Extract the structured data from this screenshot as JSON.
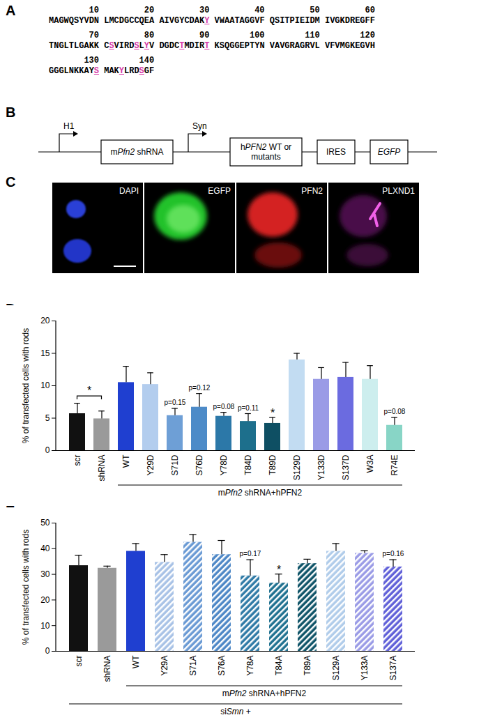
{
  "panels": [
    {
      "label": "A",
      "sequence": {
        "numbers": [
          10,
          20,
          30,
          40,
          50,
          60,
          70,
          80,
          90,
          100,
          110,
          120,
          130,
          140
        ],
        "blocks": [
          "MAGWQSYVDN",
          "LMCDGCCQEA",
          "AIVGYCDAKY",
          "VWAATAGGVF",
          "QSITPIEIDM",
          "IVGKDREGFF",
          "TNGLTLGAKK",
          "CSVIRDSLYV",
          "DGDCTMDIRT",
          "KSQGGEPTYN",
          "VAVGRAGRVL",
          "VFVMGKEGVH",
          "GGGLNKKAYS",
          "MAKYLRDSGF"
        ],
        "highlighted": [
          30,
          72,
          77,
          79,
          85,
          90,
          130,
          134,
          138
        ],
        "color": "#d63aa8"
      }
    },
    {
      "label": "B",
      "elements": [
        {
          "type": "promoter",
          "text": "H1"
        },
        {
          "type": "box",
          "lines": [
            [
              {
                "text": "m"
              },
              {
                "text": "Pfn2",
                "italic": true
              },
              {
                "text": " shRNA"
              }
            ]
          ]
        },
        {
          "type": "promoter",
          "text": "Syn"
        },
        {
          "type": "box",
          "lines": [
            [
              {
                "text": "h"
              },
              {
                "text": "PFN2",
                "italic": true
              },
              {
                "text": " WT or"
              }
            ],
            [
              {
                "text": "mutants"
              }
            ]
          ]
        },
        {
          "type": "box",
          "lines": [
            [
              {
                "text": "IRES"
              }
            ]
          ]
        },
        {
          "type": "box",
          "lines": [
            [
              {
                "text": "EGFP",
                "italic": true
              }
            ]
          ]
        }
      ]
    },
    {
      "label": "C",
      "images": [
        "DAPI",
        "EGFP",
        "PFN2",
        "PLXND1"
      ]
    }
  ],
  "chart_data": [
    {
      "label": "D",
      "type": "bar",
      "y_label": "% of transfected cells with rods",
      "categories": [
        "scr",
        "shRNA",
        "WT",
        "Y29D",
        "S71D",
        "S76D",
        "Y78D",
        "T84D",
        "T89D",
        "S129D",
        "Y133D",
        "S137D",
        "W3A",
        "R74E"
      ],
      "values": [
        5.7,
        4.9,
        10.5,
        10.2,
        5.4,
        6.7,
        5.3,
        4.5,
        4.2,
        14.0,
        11.0,
        11.3,
        11.0,
        3.9
      ],
      "errors": [
        1.6,
        1.2,
        2.5,
        1.8,
        1.1,
        2.1,
        0.6,
        1.2,
        0.9,
        1.0,
        1.8,
        2.3,
        2.1,
        1.2
      ],
      "colors": [
        "#111111",
        "#9a9a9a",
        "#1f3fd0",
        "#b3cdee",
        "#6e9fd6",
        "#4d8bc8",
        "#2c78a8",
        "#1d6f8c",
        "#0e4f63",
        "#c2dcf2",
        "#9a9be6",
        "#6b6be0",
        "#cdeeee",
        "#88d5c6"
      ],
      "ylim": [
        0,
        20
      ],
      "yticks": [
        0,
        5,
        10,
        15,
        20
      ],
      "annotations": [
        {
          "category": "S71D",
          "text": "p=0.15"
        },
        {
          "category": "S76D",
          "text": "p=0.12"
        },
        {
          "category": "Y78D",
          "text": "p=0.08"
        },
        {
          "category": "T84D",
          "text": "p=0.11"
        },
        {
          "category": "T89D",
          "text": "*"
        },
        {
          "category": "R74E",
          "text": "p=0.08"
        }
      ],
      "brackets": [
        {
          "from": "scr",
          "to": "shRNA",
          "text": "*"
        }
      ],
      "groups": [
        {
          "from": "WT",
          "to": "R74E",
          "label": [
            {
              "text": "m"
            },
            {
              "text": "Pfn2",
              "italic": true
            },
            {
              "text": " shRNA+hPFN2"
            }
          ]
        }
      ]
    },
    {
      "label": "E",
      "type": "bar",
      "y_label": "% of transfected cells with rods",
      "categories": [
        "scr",
        "shRNA",
        "WT",
        "Y29A",
        "S71A",
        "S76A",
        "Y78A",
        "T84A",
        "T89A",
        "S129A",
        "Y133A",
        "S137A"
      ],
      "values": [
        33.4,
        32.4,
        39.0,
        34.7,
        42.5,
        37.7,
        29.4,
        26.6,
        34.2,
        39.0,
        38.2,
        32.9
      ],
      "errors": [
        4.0,
        0.8,
        3.0,
        3.0,
        3.0,
        5.5,
        6.3,
        3.5,
        1.7,
        3.0,
        1.0,
        2.8
      ],
      "colors": [
        "#111111",
        "#9a9a9a",
        "#1f3fd0",
        "#a8c2e6",
        "#6a9ad4",
        "#4d87c6",
        "#2f7aa6",
        "#1f7190",
        "#0f5468",
        "#b0ccea",
        "#9a9be6",
        "#6060d8"
      ],
      "ylim": [
        0,
        50
      ],
      "yticks": [
        0,
        10,
        20,
        30,
        40,
        50
      ],
      "annotations": [
        {
          "category": "Y78A",
          "text": "p=0.17"
        },
        {
          "category": "T84A",
          "text": "*"
        },
        {
          "category": "S137A",
          "text": "p=0.16"
        }
      ],
      "groups": [
        {
          "from": "WT",
          "to": "S137A",
          "label": [
            {
              "text": "m"
            },
            {
              "text": "Pfn2",
              "italic": true
            },
            {
              "text": " shRNA+hPFN2"
            }
          ]
        },
        {
          "from": "scr",
          "to": "S137A",
          "label": [
            {
              "text": "si"
            },
            {
              "text": "Smn",
              "italic": true
            },
            {
              "text": " +"
            }
          ]
        }
      ]
    }
  ]
}
